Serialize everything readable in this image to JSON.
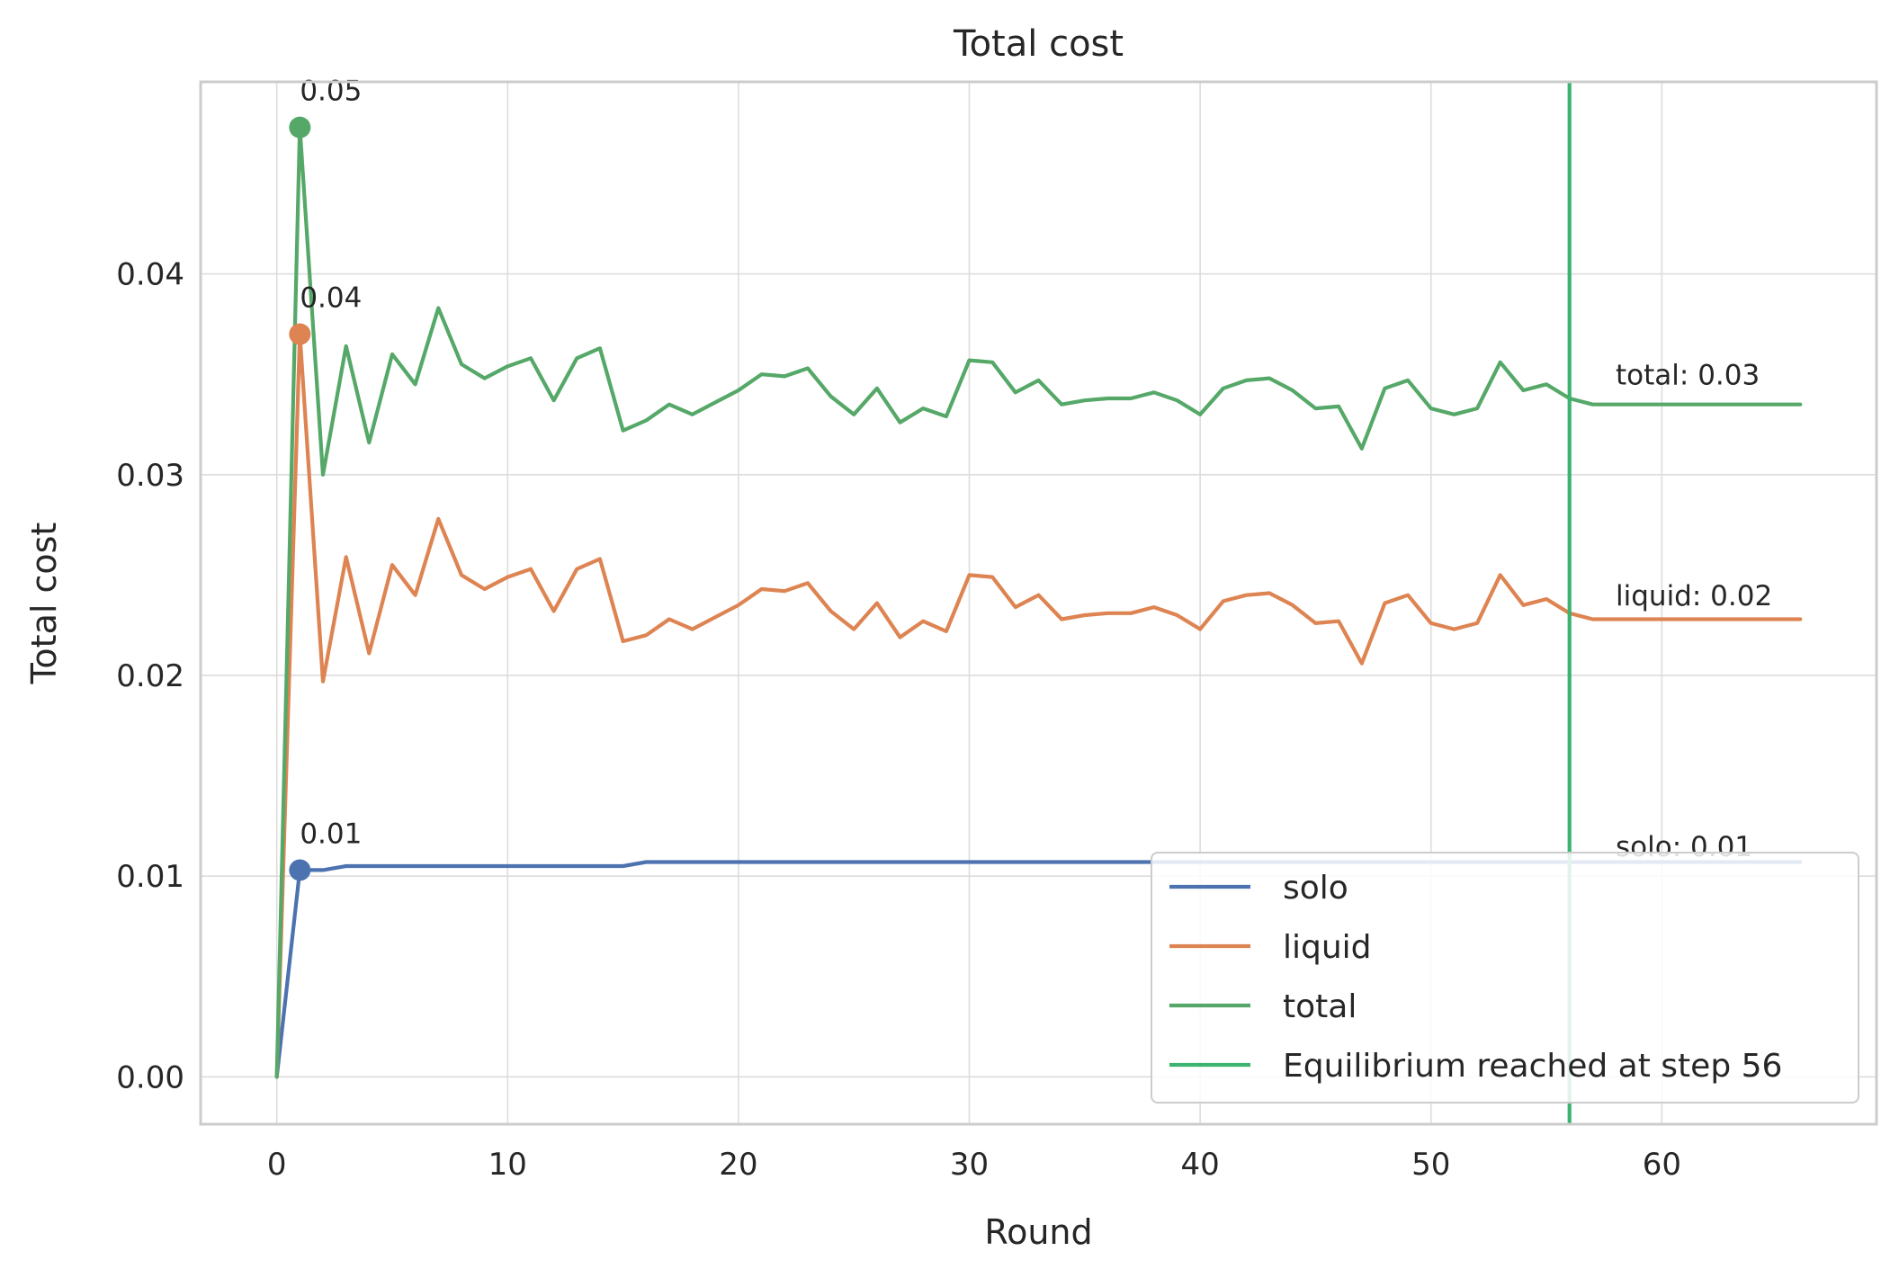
{
  "chart_data": {
    "type": "line",
    "title": "Total cost",
    "xlabel": "Round",
    "ylabel": "Total cost",
    "xlim": [
      -3.3,
      69.3
    ],
    "ylim": [
      -0.00236,
      0.04957
    ],
    "xticks": [
      0,
      10,
      20,
      30,
      40,
      50,
      60
    ],
    "xtick_labels": [
      "0",
      "10",
      "20",
      "30",
      "40",
      "50",
      "60"
    ],
    "yticks": [
      0.0,
      0.01,
      0.02,
      0.03,
      0.04
    ],
    "ytick_labels": [
      "0.00",
      "0.01",
      "0.02",
      "0.03",
      "0.04"
    ],
    "grid": true,
    "legend_position": "lower-right",
    "x": [
      0,
      1,
      2,
      3,
      4,
      5,
      6,
      7,
      8,
      9,
      10,
      11,
      12,
      13,
      14,
      15,
      16,
      17,
      18,
      19,
      20,
      21,
      22,
      23,
      24,
      25,
      26,
      27,
      28,
      29,
      30,
      31,
      32,
      33,
      34,
      35,
      36,
      37,
      38,
      39,
      40,
      41,
      42,
      43,
      44,
      45,
      46,
      47,
      48,
      49,
      50,
      51,
      52,
      53,
      54,
      55,
      56,
      57,
      58,
      59,
      60,
      61,
      62,
      63,
      64,
      65,
      66
    ],
    "series": [
      {
        "name": "solo",
        "color": "#4c72b0",
        "values": [
          0.0,
          0.0103,
          0.0103,
          0.0105,
          0.0105,
          0.0105,
          0.0105,
          0.0105,
          0.0105,
          0.0105,
          0.0105,
          0.0105,
          0.0105,
          0.0105,
          0.0105,
          0.0105,
          0.0107,
          0.0107,
          0.0107,
          0.0107,
          0.0107,
          0.0107,
          0.0107,
          0.0107,
          0.0107,
          0.0107,
          0.0107,
          0.0107,
          0.0107,
          0.0107,
          0.0107,
          0.0107,
          0.0107,
          0.0107,
          0.0107,
          0.0107,
          0.0107,
          0.0107,
          0.0107,
          0.0107,
          0.0107,
          0.0107,
          0.0107,
          0.0107,
          0.0107,
          0.0107,
          0.0107,
          0.0107,
          0.0107,
          0.0107,
          0.0107,
          0.0107,
          0.0107,
          0.0107,
          0.0107,
          0.0107,
          0.0107,
          0.0107,
          0.0107,
          0.0107,
          0.0107,
          0.0107,
          0.0107,
          0.0107,
          0.0107,
          0.0107,
          0.0107
        ]
      },
      {
        "name": "liquid",
        "color": "#dd8452",
        "values": [
          0.0,
          0.037,
          0.0197,
          0.0259,
          0.0211,
          0.0255,
          0.024,
          0.0278,
          0.025,
          0.0243,
          0.0249,
          0.0253,
          0.0232,
          0.0253,
          0.0258,
          0.0217,
          0.022,
          0.0228,
          0.0223,
          0.0229,
          0.0235,
          0.0243,
          0.0242,
          0.0246,
          0.0232,
          0.0223,
          0.0236,
          0.0219,
          0.0227,
          0.0222,
          0.025,
          0.0249,
          0.0234,
          0.024,
          0.0228,
          0.023,
          0.0231,
          0.0231,
          0.0234,
          0.023,
          0.0223,
          0.0237,
          0.024,
          0.0241,
          0.0235,
          0.0226,
          0.0227,
          0.0206,
          0.0236,
          0.024,
          0.0226,
          0.0223,
          0.0226,
          0.025,
          0.0235,
          0.0238,
          0.0231,
          0.0228,
          0.0228,
          0.0228,
          0.0228,
          0.0228,
          0.0228,
          0.0228,
          0.0228,
          0.0228,
          0.0228
        ]
      },
      {
        "name": "total",
        "color": "#55a868",
        "values": [
          0.0,
          0.0473,
          0.03,
          0.0364,
          0.0316,
          0.036,
          0.0345,
          0.0383,
          0.0355,
          0.0348,
          0.0354,
          0.0358,
          0.0337,
          0.0358,
          0.0363,
          0.0322,
          0.0327,
          0.0335,
          0.033,
          0.0336,
          0.0342,
          0.035,
          0.0349,
          0.0353,
          0.0339,
          0.033,
          0.0343,
          0.0326,
          0.0333,
          0.0329,
          0.0357,
          0.0356,
          0.0341,
          0.0347,
          0.0335,
          0.0337,
          0.0338,
          0.0338,
          0.0341,
          0.0337,
          0.033,
          0.0343,
          0.0347,
          0.0348,
          0.0342,
          0.0333,
          0.0334,
          0.0313,
          0.0343,
          0.0347,
          0.0333,
          0.033,
          0.0333,
          0.0356,
          0.0342,
          0.0345,
          0.0338,
          0.0335,
          0.0335,
          0.0335,
          0.0335,
          0.0335,
          0.0335,
          0.0335,
          0.0335,
          0.0335,
          0.0335
        ]
      }
    ],
    "peak_markers": [
      {
        "series": "solo",
        "x": 1,
        "y": 0.0103,
        "label": "0.01",
        "color": "#4c72b0"
      },
      {
        "series": "liquid",
        "x": 1,
        "y": 0.037,
        "label": "0.04",
        "color": "#dd8452"
      },
      {
        "series": "total",
        "x": 1,
        "y": 0.0473,
        "label": "0.05",
        "color": "#55a868"
      }
    ],
    "end_annotations": [
      {
        "text": "total: 0.03",
        "x": 58,
        "y": 0.0345
      },
      {
        "text": "liquid: 0.02",
        "x": 58,
        "y": 0.0235
      },
      {
        "text": "solo: 0.01",
        "x": 58,
        "y": 0.011
      }
    ],
    "vline": {
      "x": 56,
      "label": "Equilibrium reached at step 56",
      "color": "#3cb371"
    }
  }
}
